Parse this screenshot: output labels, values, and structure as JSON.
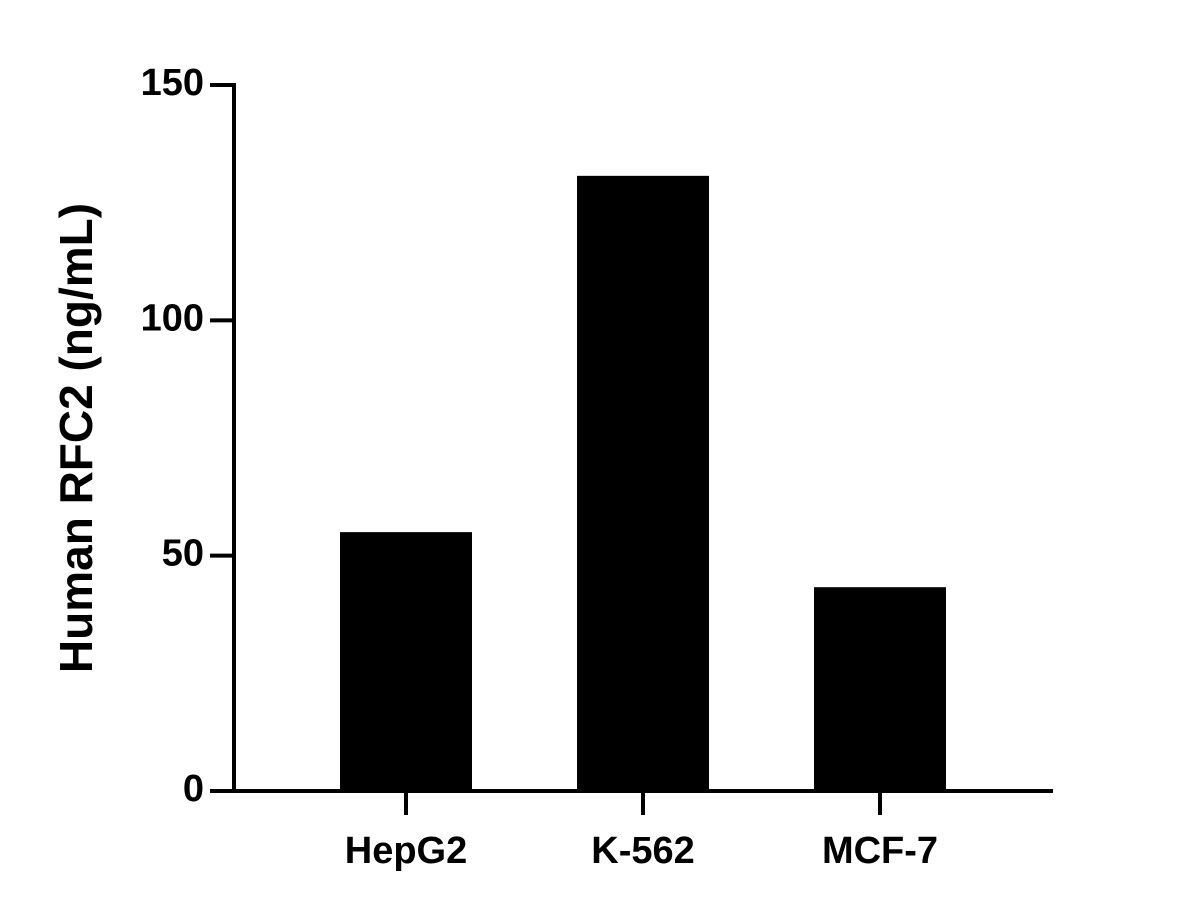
{
  "chart_data": {
    "type": "bar",
    "y_label": "Human RFC2 (ng/mL)",
    "categories": [
      "HepG2",
      "K-562",
      "MCF-7"
    ],
    "values": [
      55,
      130.7,
      43.3
    ],
    "color": "#000000",
    "ylim": [
      0,
      150
    ],
    "yticks": [
      0,
      50,
      100,
      150
    ],
    "grid": false
  }
}
